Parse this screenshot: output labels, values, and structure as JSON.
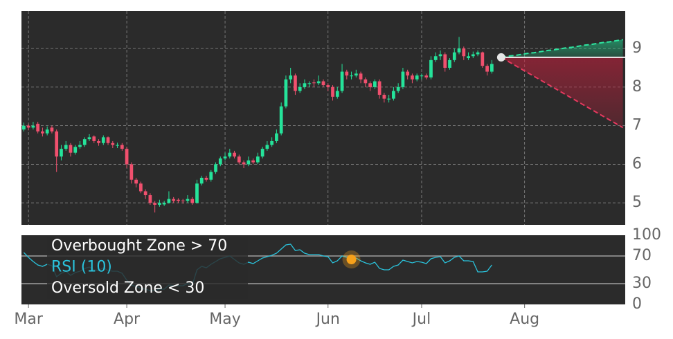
{
  "chart_data": [
    {
      "type": "candlestick",
      "ohlc": [
        [
          6.9,
          7.08,
          6.85,
          7.0
        ],
        [
          7.0,
          7.05,
          6.88,
          6.95
        ],
        [
          6.95,
          7.1,
          6.9,
          7.0
        ],
        [
          7.05,
          7.1,
          6.8,
          6.85
        ],
        [
          6.85,
          6.95,
          6.72,
          6.8
        ],
        [
          6.8,
          6.98,
          6.75,
          6.9
        ],
        [
          6.95,
          7.0,
          6.8,
          6.85
        ],
        [
          6.85,
          6.9,
          5.8,
          6.2
        ],
        [
          6.2,
          6.5,
          6.1,
          6.4
        ],
        [
          6.4,
          6.6,
          6.35,
          6.5
        ],
        [
          6.5,
          6.55,
          6.2,
          6.3
        ],
        [
          6.3,
          6.5,
          6.25,
          6.45
        ],
        [
          6.45,
          6.6,
          6.4,
          6.5
        ],
        [
          6.5,
          6.7,
          6.45,
          6.65
        ],
        [
          6.65,
          6.78,
          6.6,
          6.7
        ],
        [
          6.72,
          6.75,
          6.55,
          6.6
        ],
        [
          6.6,
          6.65,
          6.48,
          6.55
        ],
        [
          6.55,
          6.75,
          6.5,
          6.7
        ],
        [
          6.7,
          6.72,
          6.5,
          6.55
        ],
        [
          6.55,
          6.6,
          6.42,
          6.5
        ],
        [
          6.48,
          6.56,
          6.42,
          6.5
        ],
        [
          6.5,
          6.55,
          6.35,
          6.4
        ],
        [
          6.4,
          6.45,
          5.9,
          6.0
        ],
        [
          6.0,
          6.05,
          5.5,
          5.6
        ],
        [
          5.6,
          5.65,
          5.4,
          5.5
        ],
        [
          5.5,
          5.55,
          5.25,
          5.3
        ],
        [
          5.3,
          5.35,
          5.1,
          5.2
        ],
        [
          5.2,
          5.25,
          4.95,
          5.0
        ],
        [
          5.0,
          5.05,
          4.75,
          4.95
        ],
        [
          4.95,
          5.08,
          4.9,
          5.0
        ],
        [
          4.96,
          5.05,
          4.92,
          5.0
        ],
        [
          5.0,
          5.3,
          4.98,
          5.1
        ],
        [
          5.1,
          5.15,
          5.0,
          5.05
        ],
        [
          5.08,
          5.12,
          5.0,
          5.05
        ],
        [
          5.06,
          5.1,
          4.98,
          5.05
        ],
        [
          5.05,
          5.2,
          5.0,
          5.1
        ],
        [
          5.1,
          5.15,
          4.95,
          5.0
        ],
        [
          5.0,
          5.6,
          4.98,
          5.5
        ],
        [
          5.5,
          5.7,
          5.45,
          5.65
        ],
        [
          5.65,
          5.7,
          5.55,
          5.6
        ],
        [
          5.6,
          5.85,
          5.55,
          5.8
        ],
        [
          5.8,
          6.05,
          5.75,
          6.0
        ],
        [
          6.0,
          6.2,
          5.95,
          6.15
        ],
        [
          6.15,
          6.3,
          6.1,
          6.2
        ],
        [
          6.2,
          6.4,
          6.15,
          6.3
        ],
        [
          6.3,
          6.35,
          6.15,
          6.2
        ],
        [
          6.2,
          6.25,
          6.0,
          6.05
        ],
        [
          6.05,
          6.1,
          5.9,
          6.0
        ],
        [
          6.0,
          6.2,
          5.95,
          6.1
        ],
        [
          6.1,
          6.15,
          6.0,
          6.05
        ],
        [
          6.05,
          6.3,
          6.0,
          6.2
        ],
        [
          6.2,
          6.45,
          6.15,
          6.4
        ],
        [
          6.4,
          6.6,
          6.35,
          6.5
        ],
        [
          6.5,
          6.7,
          6.45,
          6.6
        ],
        [
          6.6,
          6.9,
          6.55,
          6.8
        ],
        [
          6.8,
          7.6,
          6.75,
          7.5
        ],
        [
          7.5,
          8.3,
          7.45,
          8.2
        ],
        [
          8.2,
          8.5,
          8.1,
          8.3
        ],
        [
          8.3,
          8.35,
          7.8,
          7.9
        ],
        [
          7.9,
          8.1,
          7.85,
          8.0
        ],
        [
          8.0,
          8.2,
          7.95,
          8.1
        ],
        [
          8.08,
          8.15,
          8.0,
          8.1
        ],
        [
          8.12,
          8.2,
          8.0,
          8.1
        ],
        [
          8.1,
          8.3,
          8.05,
          8.15
        ],
        [
          8.15,
          8.2,
          8.0,
          8.05
        ],
        [
          8.05,
          8.1,
          7.9,
          8.0
        ],
        [
          8.0,
          8.05,
          7.65,
          7.75
        ],
        [
          7.75,
          8.0,
          7.7,
          7.9
        ],
        [
          7.9,
          8.6,
          7.85,
          8.4
        ],
        [
          8.4,
          8.45,
          8.2,
          8.3
        ],
        [
          8.28,
          8.4,
          8.2,
          8.3
        ],
        [
          8.3,
          8.45,
          8.25,
          8.35
        ],
        [
          8.35,
          8.4,
          8.1,
          8.2
        ],
        [
          8.2,
          8.25,
          8.0,
          8.1
        ],
        [
          8.1,
          8.15,
          7.9,
          8.0
        ],
        [
          8.0,
          8.2,
          7.95,
          8.15
        ],
        [
          8.15,
          8.2,
          7.7,
          7.8
        ],
        [
          7.8,
          7.85,
          7.6,
          7.7
        ],
        [
          7.68,
          7.8,
          7.6,
          7.7
        ],
        [
          7.7,
          8.0,
          7.65,
          7.9
        ],
        [
          7.9,
          8.1,
          7.85,
          8.0
        ],
        [
          8.0,
          8.5,
          7.95,
          8.4
        ],
        [
          8.4,
          8.45,
          8.2,
          8.3
        ],
        [
          8.3,
          8.35,
          8.1,
          8.2
        ],
        [
          8.2,
          8.35,
          8.15,
          8.3
        ],
        [
          8.28,
          8.35,
          8.2,
          8.3
        ],
        [
          8.3,
          8.35,
          8.2,
          8.25
        ],
        [
          8.25,
          8.8,
          8.2,
          8.7
        ],
        [
          8.7,
          8.9,
          8.65,
          8.8
        ],
        [
          8.8,
          8.95,
          8.7,
          8.85
        ],
        [
          8.85,
          8.9,
          8.4,
          8.5
        ],
        [
          8.5,
          8.75,
          8.45,
          8.7
        ],
        [
          8.7,
          9.0,
          8.65,
          8.9
        ],
        [
          8.9,
          9.3,
          8.85,
          9.0
        ],
        [
          9.0,
          9.05,
          8.7,
          8.8
        ],
        [
          8.75,
          8.9,
          8.7,
          8.8
        ],
        [
          8.8,
          8.92,
          8.75,
          8.85
        ],
        [
          8.85,
          8.95,
          8.8,
          8.9
        ],
        [
          8.9,
          8.92,
          8.5,
          8.55
        ],
        [
          8.55,
          8.6,
          8.3,
          8.4
        ],
        [
          8.4,
          8.7,
          8.35,
          8.6
        ],
        null,
        null,
        null,
        null,
        null,
        null,
        null,
        null,
        null,
        null,
        null,
        null,
        null,
        null,
        null,
        null,
        null,
        null,
        null,
        null,
        null,
        null,
        null,
        null,
        null,
        null,
        null,
        null
      ],
      "up_color": "#25e39a",
      "down_color": "#f0506e",
      "forecast_upper": [
        null,
        null,
        null,
        null,
        null,
        null,
        null,
        null,
        null,
        null,
        null,
        null,
        null,
        null,
        null,
        null,
        null,
        null,
        null,
        null,
        null,
        null,
        null,
        null,
        null,
        null,
        null,
        null,
        null,
        null,
        null,
        null,
        null,
        null,
        null,
        null,
        null,
        null,
        null,
        null,
        null,
        null,
        null,
        null,
        null,
        null,
        null,
        null,
        null,
        null,
        null,
        null,
        null,
        null,
        null,
        null,
        null,
        null,
        null,
        null,
        null,
        null,
        null,
        null,
        null,
        null,
        null,
        null,
        null,
        null,
        null,
        null,
        null,
        null,
        null,
        null,
        null,
        null,
        null,
        null,
        null,
        null,
        null,
        null,
        null,
        null,
        null,
        null,
        null,
        null,
        null,
        null,
        null,
        null,
        null,
        null,
        null,
        null,
        null,
        null,
        null,
        null,
        8.77,
        8.79,
        8.81,
        8.82,
        8.84,
        8.86,
        8.88,
        8.89,
        8.91,
        8.93,
        8.95,
        8.96,
        8.98,
        9.0,
        9.02,
        9.03,
        9.05,
        9.07,
        9.09,
        9.1,
        9.12,
        9.14,
        9.16,
        9.17,
        9.19,
        9.21,
        9.23
      ],
      "forecast_lower": [
        null,
        null,
        null,
        null,
        null,
        null,
        null,
        null,
        null,
        null,
        null,
        null,
        null,
        null,
        null,
        null,
        null,
        null,
        null,
        null,
        null,
        null,
        null,
        null,
        null,
        null,
        null,
        null,
        null,
        null,
        null,
        null,
        null,
        null,
        null,
        null,
        null,
        null,
        null,
        null,
        null,
        null,
        null,
        null,
        null,
        null,
        null,
        null,
        null,
        null,
        null,
        null,
        null,
        null,
        null,
        null,
        null,
        null,
        null,
        null,
        null,
        null,
        null,
        null,
        null,
        null,
        null,
        null,
        null,
        null,
        null,
        null,
        null,
        null,
        null,
        null,
        null,
        null,
        null,
        null,
        null,
        null,
        null,
        null,
        null,
        null,
        null,
        null,
        null,
        null,
        null,
        null,
        null,
        null,
        null,
        null,
        null,
        null,
        null,
        null,
        null,
        null,
        8.77,
        8.7,
        8.63,
        8.56,
        8.49,
        8.42,
        8.35,
        8.28,
        8.21,
        8.14,
        8.07,
        8.0,
        7.93,
        7.86,
        7.79,
        7.72,
        7.65,
        7.58,
        7.51,
        7.44,
        7.37,
        7.3,
        7.23,
        7.16,
        7.09,
        7.02,
        6.95
      ],
      "upper_color": "#2ee6a0",
      "lower_color": "#e8395f",
      "ylim": [
        4.43,
        9.97
      ],
      "yticks": [
        5,
        6,
        7,
        8,
        9
      ],
      "grid": true
    },
    {
      "type": "line",
      "categories": [
        null,
        "Mar",
        null,
        null,
        null,
        null,
        null,
        null,
        null,
        null,
        null,
        null,
        null,
        null,
        null,
        null,
        null,
        null,
        null,
        null,
        null,
        null,
        "Apr",
        null,
        null,
        null,
        null,
        null,
        null,
        null,
        null,
        null,
        null,
        null,
        null,
        null,
        null,
        null,
        null,
        null,
        null,
        null,
        null,
        "May",
        null,
        null,
        null,
        null,
        null,
        null,
        null,
        null,
        null,
        null,
        null,
        null,
        null,
        null,
        null,
        null,
        null,
        null,
        null,
        null,
        null,
        "Jun",
        null,
        null,
        null,
        null,
        null,
        null,
        null,
        null,
        null,
        null,
        null,
        null,
        null,
        null,
        null,
        null,
        null,
        null,
        null,
        "Jul",
        null,
        null,
        null,
        null,
        null,
        null,
        null,
        null,
        null,
        null,
        null,
        null,
        null,
        null,
        null,
        null,
        null,
        null,
        null,
        null,
        null,
        "Aug",
        null,
        null,
        null,
        null,
        null,
        null,
        null,
        null,
        null,
        null,
        null,
        null,
        null,
        null,
        null,
        null,
        null,
        null,
        null,
        null,
        null
      ],
      "values": [
        75,
        68,
        62,
        57,
        55,
        58,
        56,
        40,
        45,
        48,
        42,
        46,
        48,
        52,
        54,
        50,
        49,
        53,
        49,
        48,
        48,
        45,
        35,
        28,
        26,
        23,
        22,
        20,
        20,
        22,
        22,
        28,
        27,
        27,
        27,
        30,
        28,
        50,
        55,
        53,
        58,
        62,
        66,
        68,
        70,
        65,
        60,
        58,
        61,
        59,
        63,
        67,
        69,
        71,
        74,
        80,
        86,
        87,
        78,
        79,
        74,
        72,
        72,
        72,
        70,
        69,
        60,
        63,
        70,
        68,
        65,
        67,
        63,
        60,
        58,
        61,
        52,
        50,
        50,
        55,
        57,
        64,
        62,
        60,
        62,
        61,
        59,
        66,
        68,
        69,
        60,
        63,
        68,
        70,
        63,
        63,
        62,
        47,
        47,
        48,
        57,
        null,
        null,
        null,
        null,
        null,
        null,
        null,
        null,
        null,
        null,
        null,
        null,
        null,
        null,
        null,
        null,
        null,
        null,
        null,
        null,
        null,
        null,
        null,
        null,
        null,
        null,
        null,
        null
      ],
      "color": "#2ac3dc",
      "signal": [
        null,
        null,
        null,
        null,
        null,
        null,
        null,
        null,
        null,
        null,
        null,
        null,
        null,
        null,
        null,
        null,
        null,
        null,
        null,
        null,
        null,
        null,
        null,
        null,
        null,
        null,
        null,
        null,
        null,
        null,
        null,
        null,
        null,
        null,
        null,
        null,
        null,
        null,
        null,
        null,
        null,
        null,
        null,
        null,
        null,
        null,
        null,
        null,
        null,
        null,
        null,
        null,
        null,
        null,
        null,
        null,
        null,
        null,
        null,
        null,
        null,
        null,
        null,
        null,
        null,
        null,
        null,
        null,
        null,
        null,
        65,
        null,
        null,
        null,
        null,
        null,
        null,
        null,
        null,
        null,
        null,
        null,
        null,
        null,
        null,
        null,
        null,
        null,
        null,
        null,
        null,
        null,
        null,
        null,
        null,
        null,
        null,
        null,
        null,
        null,
        null,
        null,
        null,
        null,
        null,
        null,
        null,
        null,
        null,
        null,
        null,
        null,
        null,
        null,
        null,
        null,
        null,
        null,
        null,
        null,
        null,
        null,
        null,
        null,
        null,
        null,
        null,
        null,
        null
      ],
      "signal_color": "#f7a11a",
      "annotations": [
        "Overbought Zone > 70",
        "RSI (10)",
        "Oversold Zone < 30"
      ],
      "ylim": [
        0,
        100
      ],
      "yticks": [
        0,
        30,
        70,
        100
      ]
    }
  ]
}
